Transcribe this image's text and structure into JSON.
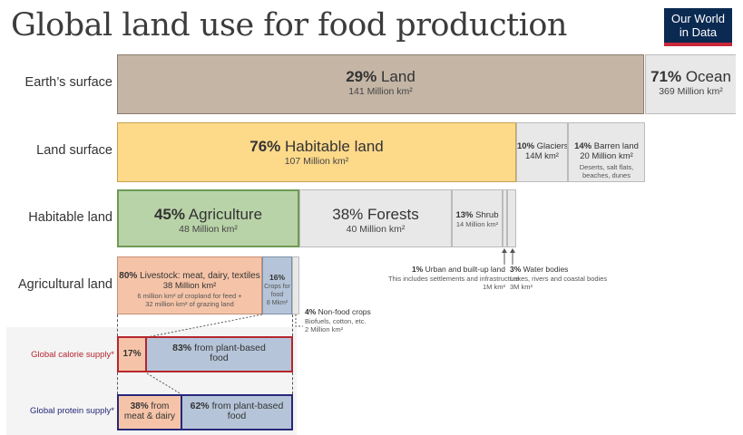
{
  "title": "Global land use for food production",
  "logo": {
    "line1": "Our World",
    "line2": "in Data"
  },
  "row_labels": {
    "earth": "Earth’s surface",
    "land": "Land surface",
    "habitable": "Habitable land",
    "agricultural": "Agricultural land",
    "calorie": "Global calorie supply*",
    "protein": "Global protein supply*"
  },
  "earth": {
    "land": {
      "pct": "29%",
      "label": "Land",
      "value": "141 Million km²",
      "share": 0.29
    },
    "ocean": {
      "pct": "71%",
      "label": "Ocean",
      "value": "369 Million km²",
      "share": 0.71
    }
  },
  "land_surface": {
    "habitable": {
      "pct": "76%",
      "label": "Habitable land",
      "value": "107 Million km²",
      "share": 0.76
    },
    "glaciers": {
      "pct": "10%",
      "label": "Glaciers",
      "value": "14M km²",
      "share": 0.1
    },
    "barren": {
      "pct": "14%",
      "label": "Barren land",
      "value": "20 Million km²",
      "note": "Deserts, salt flats, beaches, dunes",
      "share": 0.14
    }
  },
  "habitable_land": {
    "agriculture": {
      "pct": "45%",
      "label": "Agriculture",
      "value": "48 Million km²",
      "share": 0.45
    },
    "forests": {
      "pct": "38%",
      "label": "Forests",
      "value": "40 Million km²",
      "share": 0.38
    },
    "shrub": {
      "pct": "13%",
      "label": "Shrub",
      "value": "14 Million km²",
      "share": 0.13
    },
    "urban": {
      "pct": "1%",
      "label": "Urban and built-up land",
      "note": "This includes settlements and infrastructure",
      "value": "1M km²",
      "share": 0.01
    },
    "water": {
      "pct": "3%",
      "label": "Water bodies",
      "note": "Lakes, rivers and coastal bodies",
      "value": "3M km²",
      "share": 0.03
    }
  },
  "agricultural_land": {
    "livestock": {
      "pct": "80%",
      "label": "Livestock: meat, dairy, textiles",
      "value": "38 Million km²",
      "note1": "6 million km² of cropland for feed +",
      "note2": "32 million km² of grazing land",
      "share": 0.8
    },
    "crops": {
      "pct": "16%",
      "label1": "Crops for",
      "label2": "food",
      "value": "8 Mkm²",
      "share": 0.16
    },
    "nonfood": {
      "pct": "4%",
      "label": "Non-food crops",
      "note": "Biofuels, cotton, etc.",
      "value": "2 Million km²",
      "share": 0.04
    }
  },
  "calorie": {
    "animal": {
      "pct": "17%",
      "share": 0.17
    },
    "plant": {
      "pct": "83%",
      "label1": "from plant-based",
      "label2": "food",
      "share": 0.83
    }
  },
  "protein": {
    "animal": {
      "pct": "38%",
      "label1": "from",
      "label2": "meat & dairy",
      "share": 0.38
    },
    "plant": {
      "pct": "62%",
      "label1": "from plant-based",
      "label2": "food",
      "share": 0.62
    }
  },
  "colors": {
    "land": "#c4b5a5",
    "ocean": "#e8e8e8",
    "habitable": "#fdd98a",
    "glaciers": "#e8e8e8",
    "agriculture": "#b9d3a8",
    "forests": "#e8e8e8",
    "livestock": "#f5c4a8",
    "crops": "#b5c4d8",
    "calorie_border": "#b5262e",
    "protein_border": "#27287a"
  }
}
